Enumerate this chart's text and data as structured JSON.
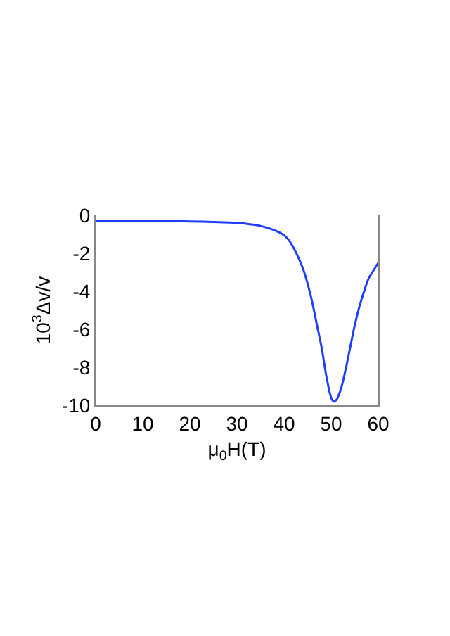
{
  "chart_data": {
    "type": "line",
    "xlabel": "μ$_{0}$H(T)",
    "ylabel": "10$^{3}$Δv/v",
    "x": [
      0,
      5,
      10,
      15,
      20,
      25,
      30,
      33,
      35,
      37,
      39,
      40,
      41,
      42,
      43,
      44,
      45,
      46,
      47,
      48,
      49,
      50,
      50.5,
      51,
      52,
      53,
      54,
      55,
      56,
      57,
      58,
      59,
      60
    ],
    "series": [
      {
        "color": "#1f3fff",
        "values": [
          -0.3,
          -0.3,
          -0.3,
          -0.3,
          -0.32,
          -0.35,
          -0.4,
          -0.48,
          -0.56,
          -0.7,
          -0.9,
          -1.05,
          -1.3,
          -1.7,
          -2.2,
          -2.8,
          -3.6,
          -4.6,
          -5.8,
          -7.0,
          -8.5,
          -9.6,
          -9.8,
          -9.75,
          -9.2,
          -8.2,
          -7.0,
          -5.8,
          -4.8,
          -4.0,
          -3.3,
          -2.9,
          -2.5
        ]
      }
    ],
    "xlim": [
      0,
      60
    ],
    "xticks": [
      0,
      10,
      20,
      30,
      40,
      50,
      60
    ],
    "ylim": [
      -10,
      0
    ],
    "yticks": [
      0,
      -2,
      -4,
      -6,
      -8,
      -10
    ],
    "grid": false,
    "marker": "none",
    "line_style": "solid"
  }
}
